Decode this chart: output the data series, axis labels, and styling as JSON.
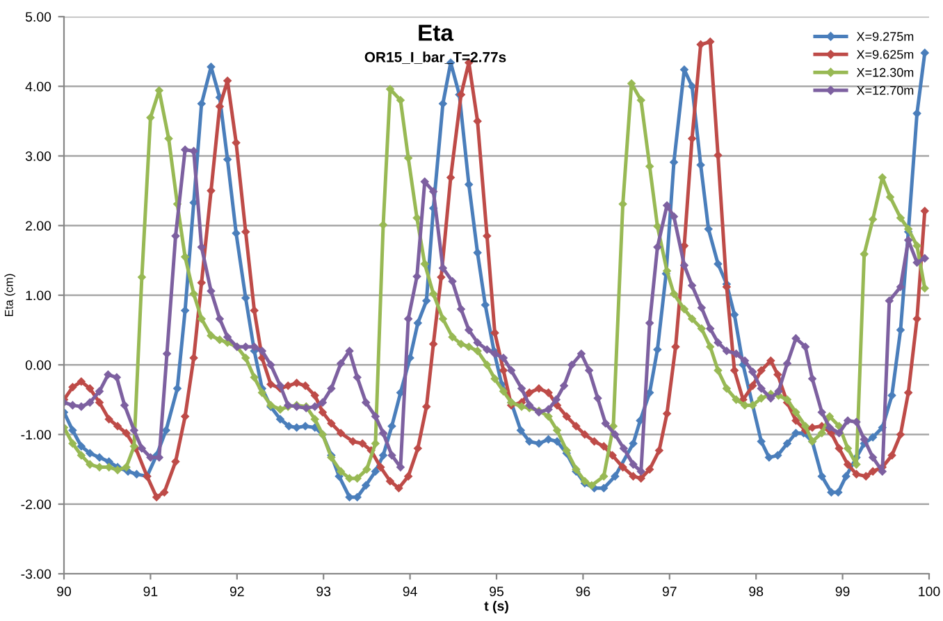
{
  "chart_data": {
    "type": "line",
    "title": "Eta",
    "subtitle": "OR15_I_bar_T=2.77s",
    "xlabel": "t (s)",
    "ylabel": "Eta (cm)",
    "xlim": [
      90,
      100
    ],
    "xticks": [
      90,
      91,
      92,
      93,
      94,
      95,
      96,
      97,
      98,
      99,
      100
    ],
    "ylim": [
      -3,
      5
    ],
    "yticks": [
      {
        "value": -3,
        "label": "-3.00"
      },
      {
        "value": -2,
        "label": "-2.00"
      },
      {
        "value": -1,
        "label": "-1.00"
      },
      {
        "value": 0,
        "label": "0.00"
      },
      {
        "value": 1,
        "label": "1.00"
      },
      {
        "value": 2,
        "label": "2.00"
      },
      {
        "value": 3,
        "label": "3.00"
      },
      {
        "value": 4,
        "label": "4.00"
      },
      {
        "value": 5,
        "label": "5.00"
      }
    ],
    "grid": "y",
    "legend": "top right",
    "marker": "diamond",
    "line_style": "solid",
    "series": [
      {
        "name": "X=9.275m",
        "color": "#4a7ebb",
        "x": [
          90.0,
          90.1,
          90.2,
          90.3,
          90.41,
          90.52,
          90.62,
          90.74,
          90.84,
          90.96,
          91.07,
          91.18,
          91.31,
          91.4,
          91.5,
          91.59,
          91.7,
          91.8,
          91.89,
          91.99,
          92.1,
          92.2,
          92.29,
          92.39,
          92.5,
          92.6,
          92.69,
          92.79,
          92.9,
          92.99,
          93.09,
          93.18,
          93.3,
          93.39,
          93.49,
          93.6,
          93.69,
          93.79,
          93.89,
          94.0,
          94.09,
          94.19,
          94.27,
          94.38,
          94.47,
          94.57,
          94.68,
          94.78,
          94.87,
          94.97,
          95.06,
          95.17,
          95.28,
          95.38,
          95.49,
          95.6,
          95.7,
          95.81,
          95.92,
          96.02,
          96.13,
          96.24,
          96.37,
          96.58,
          96.66,
          96.77,
          96.86,
          96.96,
          97.05,
          97.17,
          97.26,
          97.36,
          97.45,
          97.56,
          97.66,
          97.75,
          97.85,
          98.06,
          98.15,
          98.25,
          98.36,
          98.46,
          98.55,
          98.65,
          98.76,
          98.87,
          98.95,
          99.04,
          99.16,
          99.25,
          99.35,
          99.46,
          99.57,
          99.67,
          99.76,
          99.86,
          99.95
        ],
        "values": [
          -0.68,
          -0.94,
          -1.17,
          -1.27,
          -1.33,
          -1.39,
          -1.47,
          -1.53,
          -1.57,
          -1.6,
          -1.3,
          -0.94,
          -0.34,
          0.78,
          2.33,
          3.75,
          4.28,
          3.84,
          2.95,
          1.89,
          0.96,
          0.2,
          -0.34,
          -0.6,
          -0.78,
          -0.88,
          -0.9,
          -0.88,
          -0.9,
          -1.0,
          -1.3,
          -1.6,
          -1.9,
          -1.9,
          -1.73,
          -1.53,
          -1.3,
          -0.88,
          -0.4,
          0.1,
          0.6,
          0.92,
          2.25,
          3.75,
          4.34,
          3.88,
          2.59,
          1.61,
          0.86,
          0.2,
          -0.28,
          -0.54,
          -0.94,
          -1.1,
          -1.13,
          -1.07,
          -1.1,
          -1.27,
          -1.53,
          -1.7,
          -1.77,
          -1.77,
          -1.6,
          -1.13,
          -0.8,
          -0.4,
          0.22,
          1.31,
          2.91,
          4.24,
          4.0,
          2.87,
          1.95,
          1.45,
          1.16,
          0.72,
          0.0,
          -1.1,
          -1.33,
          -1.3,
          -1.13,
          -0.98,
          -0.98,
          -1.1,
          -1.6,
          -1.83,
          -1.83,
          -1.6,
          -1.33,
          -1.13,
          -1.04,
          -0.9,
          -0.44,
          0.5,
          1.91,
          3.61,
          4.48
        ]
      },
      {
        "name": "X=9.625m",
        "color": "#be4b48",
        "x": [
          90.0,
          90.1,
          90.2,
          90.3,
          90.41,
          90.52,
          90.62,
          90.72,
          90.83,
          90.96,
          91.07,
          91.16,
          91.29,
          91.4,
          91.5,
          91.59,
          91.7,
          91.8,
          91.89,
          91.99,
          92.1,
          92.2,
          92.29,
          92.39,
          92.5,
          92.59,
          92.69,
          92.79,
          92.9,
          92.99,
          93.09,
          93.2,
          93.34,
          93.45,
          93.55,
          93.66,
          93.77,
          93.87,
          93.98,
          94.09,
          94.19,
          94.27,
          94.36,
          94.47,
          94.59,
          94.68,
          94.78,
          94.89,
          94.98,
          95.08,
          95.17,
          95.29,
          95.38,
          95.49,
          95.6,
          95.7,
          95.81,
          95.92,
          96.02,
          96.13,
          96.24,
          96.34,
          96.46,
          96.58,
          96.67,
          96.77,
          96.88,
          96.97,
          97.07,
          97.17,
          97.26,
          97.36,
          97.47,
          97.56,
          97.66,
          97.75,
          97.85,
          97.96,
          98.06,
          98.17,
          98.25,
          98.36,
          98.46,
          98.57,
          98.65,
          98.76,
          98.87,
          98.96,
          99.06,
          99.16,
          99.27,
          99.35,
          99.46,
          99.57,
          99.67,
          99.76,
          99.86,
          99.95
        ],
        "values": [
          -0.5,
          -0.32,
          -0.24,
          -0.34,
          -0.54,
          -0.78,
          -0.88,
          -0.98,
          -1.2,
          -1.6,
          -1.9,
          -1.83,
          -1.39,
          -0.74,
          0.1,
          1.18,
          2.5,
          3.71,
          4.08,
          3.19,
          1.91,
          0.78,
          0.1,
          -0.28,
          -0.34,
          -0.3,
          -0.26,
          -0.3,
          -0.44,
          -0.68,
          -0.84,
          -0.98,
          -1.1,
          -1.13,
          -1.23,
          -1.47,
          -1.67,
          -1.77,
          -1.6,
          -1.2,
          -0.6,
          0.3,
          1.26,
          2.69,
          3.88,
          4.34,
          3.5,
          1.85,
          0.46,
          -0.08,
          -0.58,
          -0.54,
          -0.4,
          -0.34,
          -0.4,
          -0.58,
          -0.74,
          -0.88,
          -1.0,
          -1.1,
          -1.17,
          -1.3,
          -1.47,
          -1.6,
          -1.63,
          -1.5,
          -1.23,
          -0.7,
          0.26,
          1.71,
          3.25,
          4.6,
          4.64,
          3.01,
          1.12,
          -0.08,
          -0.5,
          -0.3,
          -0.08,
          0.06,
          -0.14,
          -0.54,
          -0.8,
          -0.94,
          -0.9,
          -0.88,
          -0.98,
          -1.2,
          -1.43,
          -1.57,
          -1.6,
          -1.53,
          -1.47,
          -1.3,
          -1.0,
          -0.4,
          0.66,
          2.21
        ]
      },
      {
        "name": "X=12.30m",
        "color": "#98b954",
        "x": [
          90.0,
          90.1,
          90.2,
          90.3,
          90.41,
          90.52,
          90.62,
          90.72,
          90.81,
          90.9,
          91.0,
          91.1,
          91.21,
          91.31,
          91.4,
          91.5,
          91.59,
          91.7,
          91.8,
          91.89,
          92.0,
          92.1,
          92.2,
          92.29,
          92.39,
          92.5,
          92.59,
          92.69,
          92.8,
          92.9,
          92.99,
          93.09,
          93.2,
          93.3,
          93.39,
          93.5,
          93.6,
          93.69,
          93.77,
          93.89,
          93.98,
          94.08,
          94.17,
          94.27,
          94.38,
          94.49,
          94.59,
          94.68,
          94.78,
          94.89,
          94.98,
          95.08,
          95.17,
          95.29,
          95.38,
          95.49,
          95.6,
          95.7,
          95.81,
          95.92,
          96.02,
          96.1,
          96.24,
          96.35,
          96.46,
          96.56,
          96.67,
          96.77,
          96.86,
          96.97,
          97.05,
          97.17,
          97.26,
          97.37,
          97.47,
          97.56,
          97.66,
          97.77,
          97.87,
          97.96,
          98.06,
          98.17,
          98.26,
          98.36,
          98.46,
          98.57,
          98.65,
          98.76,
          98.85,
          98.96,
          99.06,
          99.16,
          99.25,
          99.35,
          99.46,
          99.55,
          99.67,
          99.76,
          99.86,
          99.95
        ],
        "values": [
          -0.9,
          -1.13,
          -1.3,
          -1.43,
          -1.47,
          -1.47,
          -1.51,
          -1.47,
          -1.17,
          1.26,
          3.55,
          3.94,
          3.25,
          2.31,
          1.55,
          1.02,
          0.66,
          0.42,
          0.36,
          0.32,
          0.26,
          0.1,
          -0.18,
          -0.4,
          -0.58,
          -0.64,
          -0.6,
          -0.58,
          -0.6,
          -0.78,
          -1.0,
          -1.33,
          -1.53,
          -1.63,
          -1.63,
          -1.5,
          -1.13,
          2.01,
          3.96,
          3.8,
          2.97,
          2.11,
          1.45,
          1.02,
          0.66,
          0.4,
          0.3,
          0.26,
          0.2,
          0.0,
          -0.2,
          -0.38,
          -0.54,
          -0.6,
          -0.62,
          -0.66,
          -0.74,
          -0.94,
          -1.23,
          -1.5,
          -1.67,
          -1.73,
          -1.6,
          -0.88,
          2.31,
          4.04,
          3.8,
          2.85,
          1.99,
          1.35,
          1.02,
          0.8,
          0.66,
          0.52,
          0.26,
          -0.08,
          -0.34,
          -0.5,
          -0.58,
          -0.58,
          -0.48,
          -0.42,
          -0.44,
          -0.5,
          -0.68,
          -0.88,
          -1.1,
          -0.98,
          -0.74,
          -0.88,
          -1.2,
          -1.43,
          1.59,
          2.09,
          2.69,
          2.41,
          2.11,
          1.95,
          1.71,
          1.1
        ]
      },
      {
        "name": "X=12.70m",
        "color": "#7d60a0",
        "x": [
          90.0,
          90.1,
          90.2,
          90.3,
          90.41,
          90.51,
          90.61,
          90.7,
          90.81,
          90.9,
          91.0,
          91.1,
          91.19,
          91.29,
          91.4,
          91.5,
          91.59,
          91.7,
          91.8,
          91.89,
          92.0,
          92.1,
          92.2,
          92.29,
          92.39,
          92.5,
          92.59,
          92.69,
          92.8,
          92.9,
          92.99,
          93.09,
          93.2,
          93.3,
          93.39,
          93.49,
          93.6,
          93.69,
          93.79,
          93.89,
          93.98,
          94.08,
          94.17,
          94.27,
          94.38,
          94.49,
          94.59,
          94.68,
          94.78,
          94.89,
          94.98,
          95.08,
          95.17,
          95.29,
          95.38,
          95.49,
          95.6,
          95.69,
          95.78,
          95.87,
          95.98,
          96.07,
          96.17,
          96.26,
          96.37,
          96.47,
          96.58,
          96.67,
          96.77,
          96.86,
          96.97,
          97.05,
          97.17,
          97.26,
          97.37,
          97.47,
          97.56,
          97.66,
          97.77,
          97.87,
          97.96,
          98.06,
          98.17,
          98.26,
          98.36,
          98.46,
          98.57,
          98.65,
          98.76,
          98.85,
          98.96,
          99.06,
          99.16,
          99.25,
          99.35,
          99.46,
          99.54,
          99.67,
          99.76,
          99.86,
          99.95
        ],
        "values": [
          -0.54,
          -0.58,
          -0.6,
          -0.54,
          -0.38,
          -0.14,
          -0.18,
          -0.58,
          -0.94,
          -1.2,
          -1.33,
          -1.33,
          0.16,
          1.85,
          3.09,
          3.07,
          1.69,
          1.06,
          0.66,
          0.4,
          0.26,
          0.26,
          0.26,
          0.2,
          0.0,
          -0.3,
          -0.58,
          -0.6,
          -0.62,
          -0.6,
          -0.54,
          -0.34,
          0.02,
          0.2,
          -0.18,
          -0.54,
          -0.74,
          -0.98,
          -1.3,
          -1.47,
          0.66,
          1.27,
          2.63,
          2.49,
          1.39,
          1.2,
          0.8,
          0.5,
          0.32,
          0.22,
          0.16,
          0.1,
          -0.08,
          -0.34,
          -0.58,
          -0.68,
          -0.64,
          -0.5,
          -0.3,
          0.0,
          0.16,
          -0.08,
          -0.48,
          -0.84,
          -1.0,
          -1.2,
          -1.43,
          -1.53,
          0.6,
          1.69,
          2.29,
          2.13,
          1.43,
          1.14,
          0.82,
          0.52,
          0.32,
          0.2,
          0.16,
          0.06,
          -0.1,
          -0.34,
          -0.48,
          -0.38,
          0.02,
          0.38,
          0.26,
          -0.2,
          -0.68,
          -0.9,
          -0.98,
          -0.8,
          -0.82,
          -1.07,
          -1.33,
          -1.53,
          0.92,
          1.12,
          1.79,
          1.47,
          1.53
        ]
      }
    ]
  }
}
